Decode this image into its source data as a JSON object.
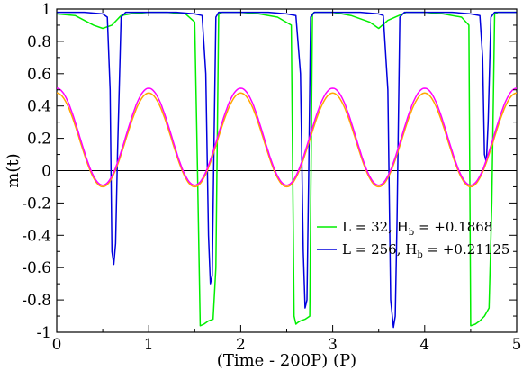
{
  "chart_data": {
    "type": "line",
    "xlabel": "(Time - 200P) (P)",
    "ylabel": "m(t)",
    "xlim": [
      0,
      5
    ],
    "ylim": [
      -1,
      1
    ],
    "x_ticks": [
      0,
      1,
      2,
      3,
      4,
      5
    ],
    "y_ticks": [
      -1,
      -0.8,
      -0.6,
      -0.4,
      -0.2,
      0,
      0.2,
      0.4,
      0.6,
      0.8,
      1
    ],
    "y_tick_labels": [
      "-1",
      "-0.8",
      "-0.6",
      "-0.4",
      "-0.2",
      "0",
      "0.2",
      "0.4",
      "0.6",
      "0.8",
      "1"
    ],
    "zero_line": true,
    "grid": false,
    "legend_position": "lower-right",
    "series": [
      {
        "name": "L = 32, H",
        "name_sub": "b",
        "name_suffix": " = +0.1868",
        "color": "#00ee00",
        "x": [
          0,
          0.2,
          0.4,
          0.5,
          0.6,
          0.7,
          0.8,
          1.0,
          1.2,
          1.4,
          1.5,
          1.53,
          1.56,
          1.6,
          1.65,
          1.7,
          1.73,
          1.76,
          1.8,
          2.0,
          2.2,
          2.4,
          2.55,
          2.58,
          2.6,
          2.62,
          2.65,
          2.7,
          2.75,
          2.78,
          2.8,
          3.0,
          3.2,
          3.4,
          3.5,
          3.6,
          3.8,
          4.0,
          4.2,
          4.4,
          4.48,
          4.5,
          4.55,
          4.6,
          4.65,
          4.7,
          4.73,
          4.76,
          4.8,
          5.0
        ],
        "y": [
          0.97,
          0.96,
          0.9,
          0.88,
          0.9,
          0.96,
          0.97,
          0.98,
          0.98,
          0.97,
          0.92,
          0.0,
          -0.96,
          -0.95,
          -0.93,
          -0.92,
          -0.6,
          0.97,
          0.98,
          0.98,
          0.97,
          0.95,
          0.9,
          -0.9,
          -0.95,
          -0.94,
          -0.93,
          -0.92,
          -0.9,
          0.97,
          0.98,
          0.98,
          0.96,
          0.92,
          0.88,
          0.93,
          0.98,
          0.98,
          0.97,
          0.95,
          0.9,
          -0.96,
          -0.95,
          -0.93,
          -0.9,
          -0.85,
          -0.2,
          0.97,
          0.98,
          0.98
        ]
      },
      {
        "name": "L = 256, H",
        "name_sub": "b",
        "name_suffix": " = +0.21125",
        "color": "#0000dd",
        "x": [
          0,
          0.3,
          0.5,
          0.55,
          0.58,
          0.6,
          0.62,
          0.64,
          0.66,
          0.7,
          0.75,
          1.0,
          1.3,
          1.5,
          1.58,
          1.62,
          1.65,
          1.67,
          1.69,
          1.71,
          1.73,
          1.76,
          1.8,
          2.0,
          2.3,
          2.5,
          2.6,
          2.65,
          2.68,
          2.7,
          2.72,
          2.74,
          2.76,
          2.8,
          3.0,
          3.3,
          3.5,
          3.55,
          3.6,
          3.63,
          3.66,
          3.68,
          3.7,
          3.73,
          3.78,
          4.0,
          4.3,
          4.5,
          4.6,
          4.63,
          4.65,
          4.67,
          4.69,
          4.72,
          4.76,
          5.0
        ],
        "y": [
          0.98,
          0.98,
          0.97,
          0.95,
          0.5,
          -0.5,
          -0.58,
          -0.45,
          0.1,
          0.95,
          0.98,
          0.98,
          0.98,
          0.97,
          0.96,
          0.6,
          -0.4,
          -0.7,
          -0.65,
          0.2,
          0.95,
          0.98,
          0.98,
          0.98,
          0.98,
          0.97,
          0.96,
          0.6,
          -0.5,
          -0.85,
          -0.8,
          0.0,
          0.95,
          0.98,
          0.98,
          0.98,
          0.97,
          0.96,
          0.5,
          -0.8,
          -0.97,
          -0.9,
          -0.3,
          0.95,
          0.98,
          0.98,
          0.98,
          0.97,
          0.96,
          0.7,
          0.1,
          0.05,
          0.3,
          0.95,
          0.98,
          0.98
        ]
      },
      {
        "name": "",
        "color": "#ffa500",
        "x": [
          0,
          0.25,
          0.5,
          0.75,
          1.0,
          1.25,
          1.5,
          1.75,
          2.0,
          2.25,
          2.5,
          2.75,
          3.0,
          3.25,
          3.5,
          3.75,
          4.0,
          4.25,
          4.5,
          4.75,
          5.0
        ],
        "amplitude": 0.29,
        "offset": 0.19,
        "period": 1.0,
        "y": [
          0.48,
          0.19,
          -0.1,
          0.19,
          0.48,
          0.19,
          -0.1,
          0.19,
          0.48,
          0.19,
          -0.1,
          0.19,
          0.48,
          0.19,
          -0.1,
          0.19,
          0.48,
          0.19,
          -0.1,
          0.19,
          0.48
        ]
      },
      {
        "name": "",
        "color": "#ff00ff",
        "x": [
          0,
          0.25,
          0.5,
          0.75,
          1.0,
          1.25,
          1.5,
          1.75,
          2.0,
          2.25,
          2.5,
          2.75,
          3.0,
          3.25,
          3.5,
          3.75,
          4.0,
          4.25,
          4.5,
          4.75,
          5.0
        ],
        "amplitude": 0.3,
        "offset": 0.21,
        "period": 1.0,
        "y": [
          0.51,
          0.21,
          -0.09,
          0.21,
          0.51,
          0.21,
          -0.09,
          0.21,
          0.51,
          0.21,
          -0.09,
          0.21,
          0.51,
          0.21,
          -0.09,
          0.21,
          0.51,
          0.21,
          -0.09,
          0.21,
          0.51
        ]
      }
    ]
  }
}
